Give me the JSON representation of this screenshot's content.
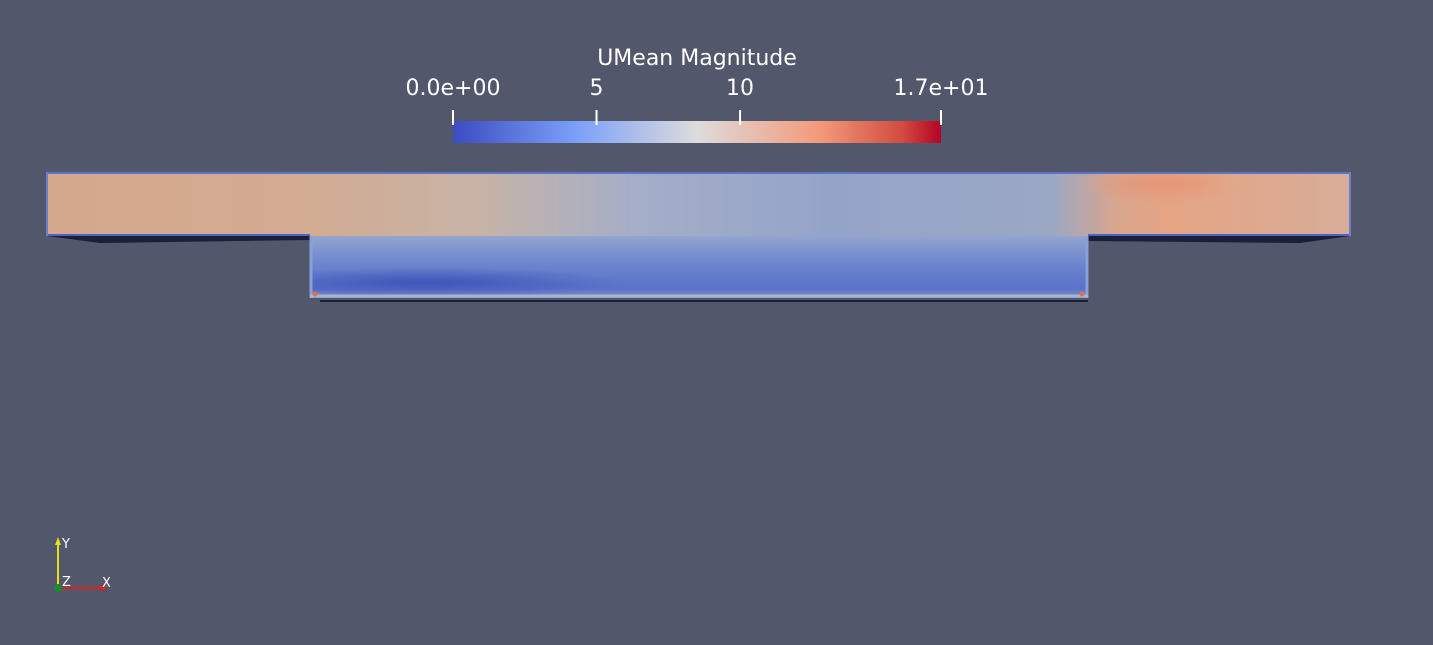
{
  "colorbar": {
    "title": "UMean Magnitude",
    "range": [
      0,
      17
    ],
    "ticks": [
      {
        "value": 0,
        "label": "0.0e+00"
      },
      {
        "value": 5,
        "label": "5"
      },
      {
        "value": 10,
        "label": "10"
      },
      {
        "value": 17,
        "label": "1.7e+01"
      }
    ],
    "colors": {
      "low": "#3b4cc0",
      "mid": "#dddddd",
      "high": "#b40426"
    }
  },
  "axes": {
    "x_label": "X",
    "y_label": "Y",
    "z_label": "Z",
    "x_color": "#e0201b",
    "y_color": "#e6e01a",
    "z_color": "#1a8a2a"
  },
  "background_color": "#52576b"
}
